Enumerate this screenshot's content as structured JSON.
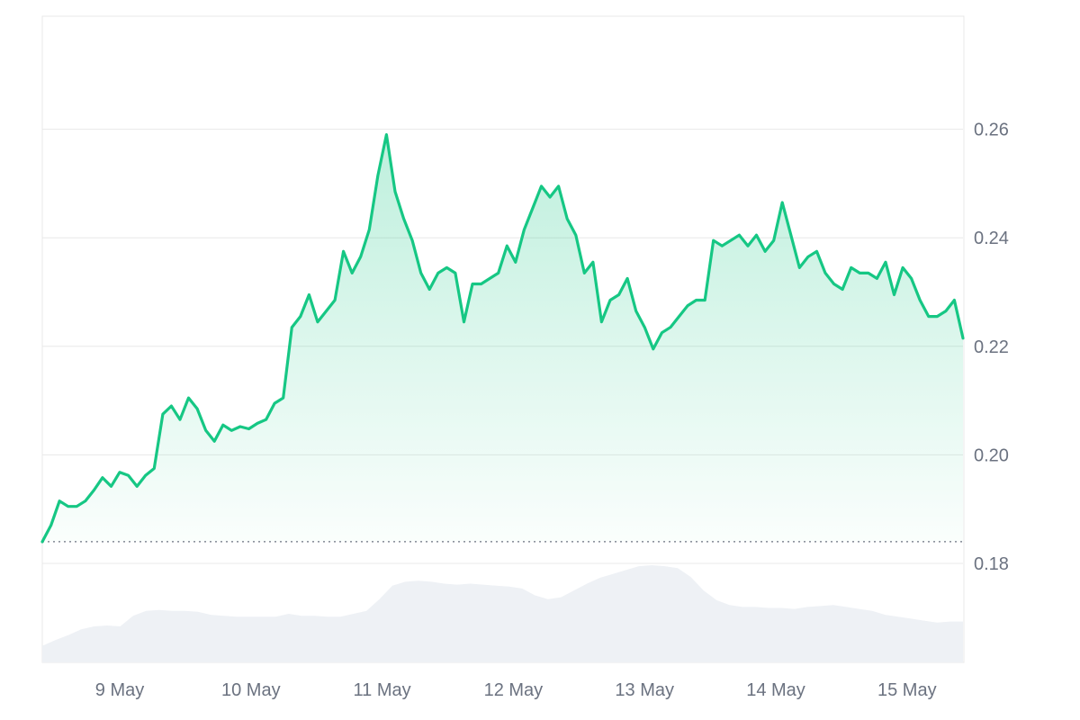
{
  "chart_data": {
    "type": "area",
    "title": "",
    "xlabel": "",
    "ylabel": "",
    "x_tick_labels": [
      "9 May",
      "10 May",
      "11 May",
      "12 May",
      "13 May",
      "14 May",
      "15 May"
    ],
    "y_tick_labels": [
      "0.18",
      "0.20",
      "0.22",
      "0.24",
      "0.26"
    ],
    "ylim": [
      0.16,
      0.28
    ],
    "grid": true,
    "baseline": 0.184,
    "series": [
      {
        "values": [
          0.184,
          0.187,
          0.1915,
          0.1905,
          0.1905,
          0.1915,
          0.1935,
          0.1958,
          0.1942,
          0.1968,
          0.1962,
          0.1942,
          0.1962,
          0.1975,
          0.2075,
          0.209,
          0.2065,
          0.2105,
          0.2085,
          0.2045,
          0.2025,
          0.2055,
          0.2045,
          0.2052,
          0.2048,
          0.2058,
          0.2065,
          0.2095,
          0.2105,
          0.2235,
          0.2255,
          0.2295,
          0.2245,
          0.2265,
          0.2285,
          0.2375,
          0.2335,
          0.2365,
          0.2415,
          0.2515,
          0.259,
          0.2485,
          0.2435,
          0.2395,
          0.2335,
          0.2305,
          0.2335,
          0.2345,
          0.2335,
          0.2245,
          0.2315,
          0.2315,
          0.2325,
          0.2335,
          0.2385,
          0.2355,
          0.2415,
          0.2455,
          0.2495,
          0.2475,
          0.2495,
          0.2435,
          0.2405,
          0.2335,
          0.2355,
          0.2245,
          0.2285,
          0.2295,
          0.2325,
          0.2265,
          0.2235,
          0.2195,
          0.2225,
          0.2235,
          0.2255,
          0.2275,
          0.2285,
          0.2285,
          0.2395,
          0.2385,
          0.2395,
          0.2405,
          0.2385,
          0.2405,
          0.2375,
          0.2395,
          0.2465,
          0.2405,
          0.2345,
          0.2365,
          0.2375,
          0.2335,
          0.2315,
          0.2305,
          0.2345,
          0.2335,
          0.2335,
          0.2325,
          0.2355,
          0.2295,
          0.2345,
          0.2325,
          0.2285,
          0.2255,
          0.2255,
          0.2265,
          0.2285,
          0.2215
        ]
      }
    ],
    "volume": [
      0.17,
      0.23,
      0.28,
      0.34,
      0.37,
      0.38,
      0.37,
      0.48,
      0.53,
      0.54,
      0.53,
      0.53,
      0.52,
      0.49,
      0.48,
      0.47,
      0.47,
      0.47,
      0.47,
      0.5,
      0.48,
      0.48,
      0.47,
      0.47,
      0.5,
      0.53,
      0.65,
      0.79,
      0.83,
      0.84,
      0.83,
      0.81,
      0.8,
      0.81,
      0.8,
      0.79,
      0.78,
      0.76,
      0.69,
      0.65,
      0.67,
      0.74,
      0.81,
      0.87,
      0.91,
      0.95,
      0.99,
      1.0,
      0.99,
      0.97,
      0.88,
      0.74,
      0.64,
      0.59,
      0.57,
      0.57,
      0.56,
      0.56,
      0.55,
      0.57,
      0.58,
      0.59,
      0.57,
      0.55,
      0.53,
      0.49,
      0.47,
      0.45,
      0.43,
      0.41,
      0.42,
      0.42
    ],
    "colors": {
      "line": "#16c784",
      "area_top": "#16c784",
      "volume": "#eef1f5",
      "grid": "#e8e8e8",
      "baseline": "#6b7280",
      "tick_text": "#6b7280"
    }
  }
}
